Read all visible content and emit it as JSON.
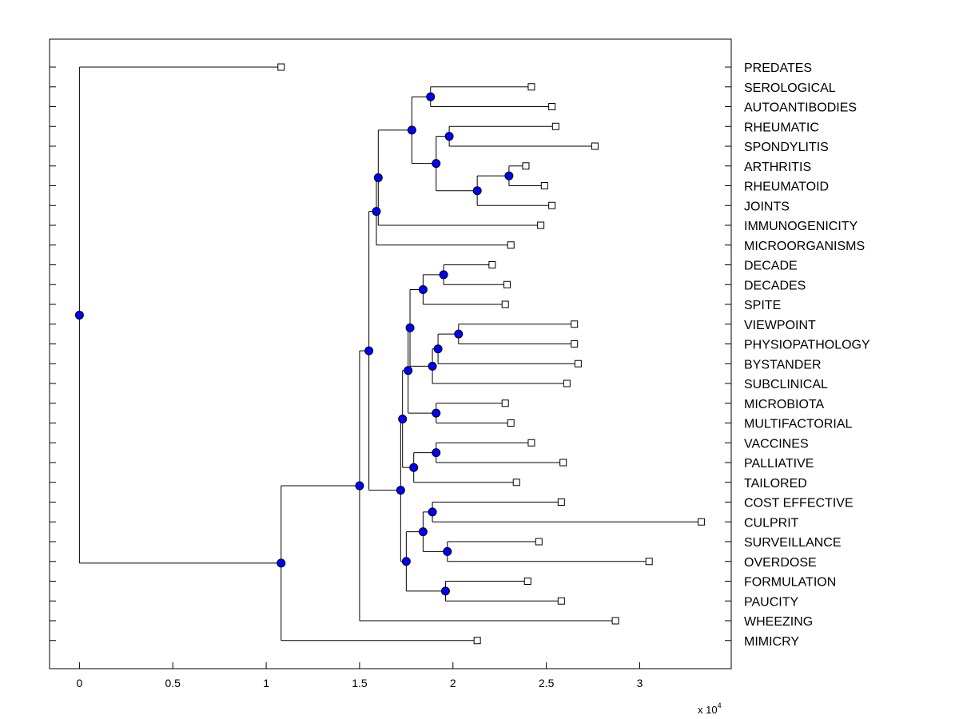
{
  "chart_data": {
    "type": "dendrogram",
    "title": "",
    "xlabel": "",
    "ylabel": "",
    "x_multiplier_base": "x 10",
    "x_multiplier_exp": "4",
    "xlim": [
      -0.16,
      3.49
    ],
    "xticks": [
      {
        "value": 0,
        "label": "0"
      },
      {
        "value": 0.5,
        "label": "0.5"
      },
      {
        "value": 1,
        "label": "1"
      },
      {
        "value": 1.5,
        "label": "1.5"
      },
      {
        "value": 2,
        "label": "2"
      },
      {
        "value": 2.5,
        "label": "2.5"
      },
      {
        "value": 3,
        "label": "3"
      }
    ],
    "colors": {
      "node": "#0000ff",
      "leaf_fill": "#ffffff",
      "line": "#000000"
    },
    "leaves": [
      {
        "label": "PREDATES",
        "x": 1.08
      },
      {
        "label": "SEROLOGICAL",
        "x": 2.42
      },
      {
        "label": "AUTOANTIBODIES",
        "x": 2.53
      },
      {
        "label": "RHEUMATIC",
        "x": 2.55
      },
      {
        "label": "SPONDYLITIS",
        "x": 2.76
      },
      {
        "label": "ARTHRITIS",
        "x": 2.39
      },
      {
        "label": "RHEUMATOID",
        "x": 2.49
      },
      {
        "label": "JOINTS",
        "x": 2.53
      },
      {
        "label": "IMMUNOGENICITY",
        "x": 2.47
      },
      {
        "label": "MICROORGANISMS",
        "x": 2.31
      },
      {
        "label": "DECADE",
        "x": 2.21
      },
      {
        "label": "DECADES",
        "x": 2.29
      },
      {
        "label": "SPITE",
        "x": 2.28
      },
      {
        "label": "VIEWPOINT",
        "x": 2.65
      },
      {
        "label": "PHYSIOPATHOLOGY",
        "x": 2.65
      },
      {
        "label": "BYSTANDER",
        "x": 2.67
      },
      {
        "label": "SUBCLINICAL",
        "x": 2.61
      },
      {
        "label": "MICROBIOTA",
        "x": 2.28
      },
      {
        "label": "MULTIFACTORIAL",
        "x": 2.31
      },
      {
        "label": "VACCINES",
        "x": 2.42
      },
      {
        "label": "PALLIATIVE",
        "x": 2.59
      },
      {
        "label": "TAILORED",
        "x": 2.34
      },
      {
        "label": "COST EFFECTIVE",
        "x": 2.58
      },
      {
        "label": "CULPRIT",
        "x": 3.33
      },
      {
        "label": "SURVEILLANCE",
        "x": 2.46
      },
      {
        "label": "OVERDOSE",
        "x": 3.05
      },
      {
        "label": "FORMULATION",
        "x": 2.4
      },
      {
        "label": "PAUCITY",
        "x": 2.58
      },
      {
        "label": "WHEEZING",
        "x": 2.87
      },
      {
        "label": "MIMICRY",
        "x": 2.13
      }
    ],
    "merges": [
      {
        "id": "n1",
        "x": 1.88,
        "children": [
          "L1",
          "L2"
        ]
      },
      {
        "id": "n2",
        "x": 1.98,
        "children": [
          "L3",
          "L4"
        ]
      },
      {
        "id": "n3",
        "x": 2.3,
        "children": [
          "L5",
          "L6"
        ]
      },
      {
        "id": "n4",
        "x": 2.13,
        "children": [
          "n3",
          "L7"
        ]
      },
      {
        "id": "n5",
        "x": 1.91,
        "children": [
          "n2",
          "n4"
        ]
      },
      {
        "id": "n6",
        "x": 1.78,
        "children": [
          "n1",
          "n5"
        ]
      },
      {
        "id": "n7",
        "x": 1.6,
        "children": [
          "n6",
          "L8"
        ]
      },
      {
        "id": "n8",
        "x": 1.59,
        "children": [
          "n7",
          "L9"
        ]
      },
      {
        "id": "n9",
        "x": 1.95,
        "children": [
          "L10",
          "L11"
        ]
      },
      {
        "id": "n10",
        "x": 1.84,
        "children": [
          "n9",
          "L12"
        ]
      },
      {
        "id": "n11",
        "x": 2.03,
        "children": [
          "L13",
          "L14"
        ]
      },
      {
        "id": "n12",
        "x": 1.92,
        "children": [
          "n11",
          "L15"
        ]
      },
      {
        "id": "n13",
        "x": 1.89,
        "children": [
          "n12",
          "L16"
        ]
      },
      {
        "id": "n14",
        "x": 1.77,
        "children": [
          "n10",
          "n13"
        ]
      },
      {
        "id": "n15",
        "x": 1.91,
        "children": [
          "L17",
          "L18"
        ]
      },
      {
        "id": "n16",
        "x": 1.76,
        "children": [
          "n14",
          "n15"
        ]
      },
      {
        "id": "n17",
        "x": 1.91,
        "children": [
          "L19",
          "L20"
        ]
      },
      {
        "id": "n18",
        "x": 1.79,
        "children": [
          "n17",
          "L21"
        ]
      },
      {
        "id": "n19",
        "x": 1.73,
        "children": [
          "n16",
          "n18"
        ]
      },
      {
        "id": "n20",
        "x": 1.89,
        "children": [
          "L22",
          "L23"
        ]
      },
      {
        "id": "n21",
        "x": 1.97,
        "children": [
          "L24",
          "L25"
        ]
      },
      {
        "id": "n22",
        "x": 1.84,
        "children": [
          "n20",
          "n21"
        ]
      },
      {
        "id": "n23",
        "x": 1.96,
        "children": [
          "L26",
          "L27"
        ]
      },
      {
        "id": "n24",
        "x": 1.75,
        "children": [
          "n22",
          "n23"
        ]
      },
      {
        "id": "n25",
        "x": 1.72,
        "children": [
          "n19",
          "n24"
        ]
      },
      {
        "id": "n26",
        "x": 1.55,
        "children": [
          "n8",
          "n25"
        ]
      },
      {
        "id": "n27",
        "x": 1.5,
        "children": [
          "n26",
          "L28"
        ]
      },
      {
        "id": "n28",
        "x": 1.08,
        "children": [
          "n27",
          "L29"
        ]
      },
      {
        "id": "n29",
        "x": 0.0,
        "children": [
          "L0",
          "n28"
        ]
      }
    ]
  }
}
